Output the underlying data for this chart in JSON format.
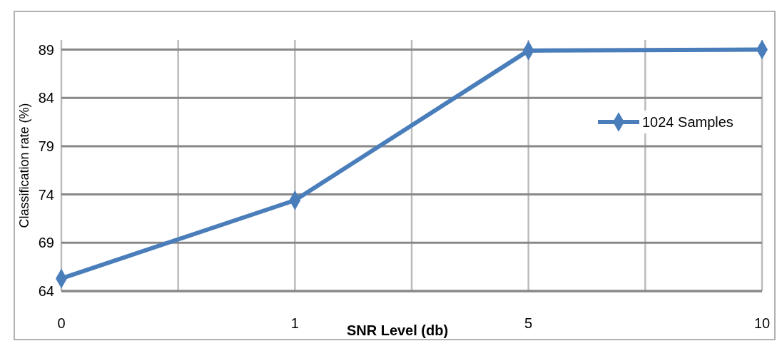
{
  "chart_data": {
    "type": "line",
    "xlabel": "SNR Level (db)",
    "ylabel": "Classification rate (%)",
    "categories": [
      "0",
      "1",
      "5",
      "10"
    ],
    "series": [
      {
        "name": "1024 Samples",
        "color": "#4a7ebb",
        "values": [
          65.3,
          73.4,
          88.9,
          89.0
        ]
      }
    ],
    "ylim": [
      64,
      90
    ],
    "yticks": [
      64,
      69,
      74,
      79,
      84,
      89
    ],
    "grid": true,
    "legend": "right",
    "marker": "diamond"
  }
}
